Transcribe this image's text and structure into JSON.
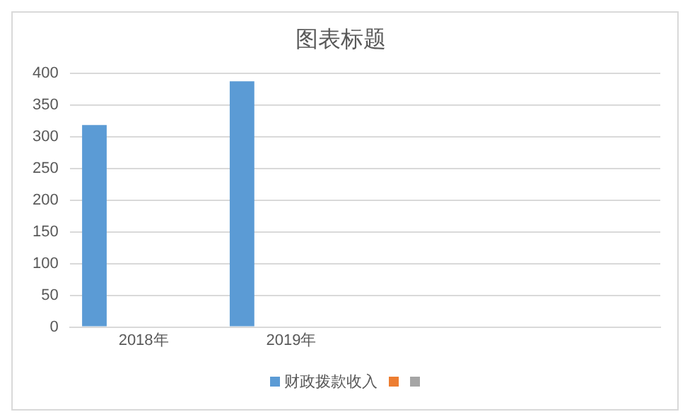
{
  "chart_data": {
    "type": "bar",
    "title": "图表标题",
    "categories": [
      "2018年",
      "2019年",
      null,
      null
    ],
    "series": [
      {
        "name": "财政拨款收入",
        "color": "#5b9bd5",
        "values": [
          319,
          388,
          null,
          null
        ]
      },
      {
        "color": "#ed7d31",
        "values": [
          null,
          null,
          null,
          null
        ]
      },
      {
        "color": "#a5a5a5",
        "values": [
          null,
          null,
          null,
          null
        ]
      }
    ],
    "ylim": [
      0,
      400
    ],
    "yticks": [
      0,
      50,
      100,
      150,
      200,
      250,
      300,
      350,
      400
    ],
    "grid": "y",
    "legend": "bottom"
  }
}
